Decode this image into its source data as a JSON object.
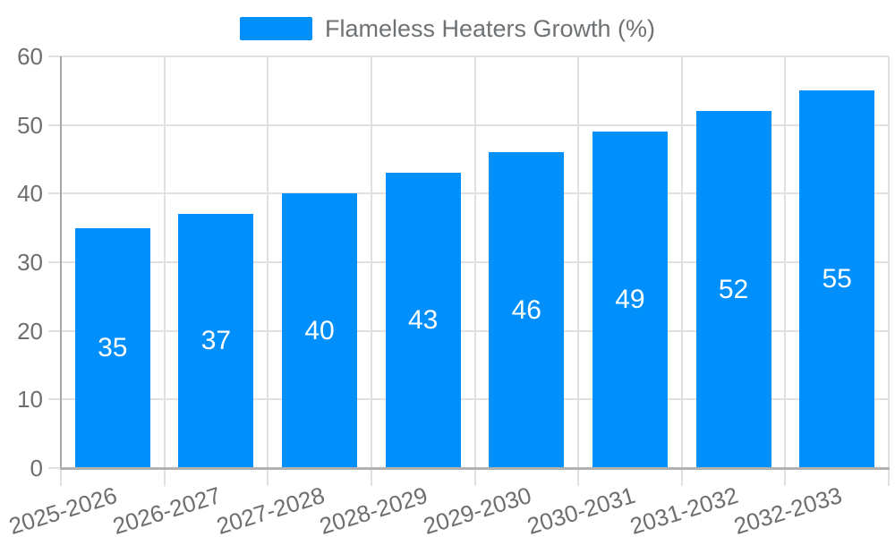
{
  "chart_data": {
    "type": "bar",
    "title": "",
    "legend_label": "Flameless Heaters Growth (%)",
    "legend_position": "top",
    "categories": [
      "2025-2026",
      "2026-2027",
      "2027-2028",
      "2028-2029",
      "2029-2030",
      "2030-2031",
      "2031-2032",
      "2032-2033"
    ],
    "values": [
      35,
      37,
      40,
      43,
      46,
      49,
      52,
      55
    ],
    "value_labels_position": "inside-center",
    "xlabel": "",
    "ylabel": "",
    "ylim": [
      0,
      60
    ],
    "yticks": [
      0,
      10,
      20,
      30,
      40,
      50,
      60
    ],
    "grid": true,
    "xlabel_rotation_deg": -17,
    "colors": {
      "bar": "#008FFB",
      "grid": "#e0e0e0",
      "tick": "#e0e0e0",
      "y_axis_line": "#a6a6a6",
      "x_axis_line": "#b1b1b1",
      "axis_text": "#6e6e6e",
      "value_label": "#ffffff"
    }
  }
}
